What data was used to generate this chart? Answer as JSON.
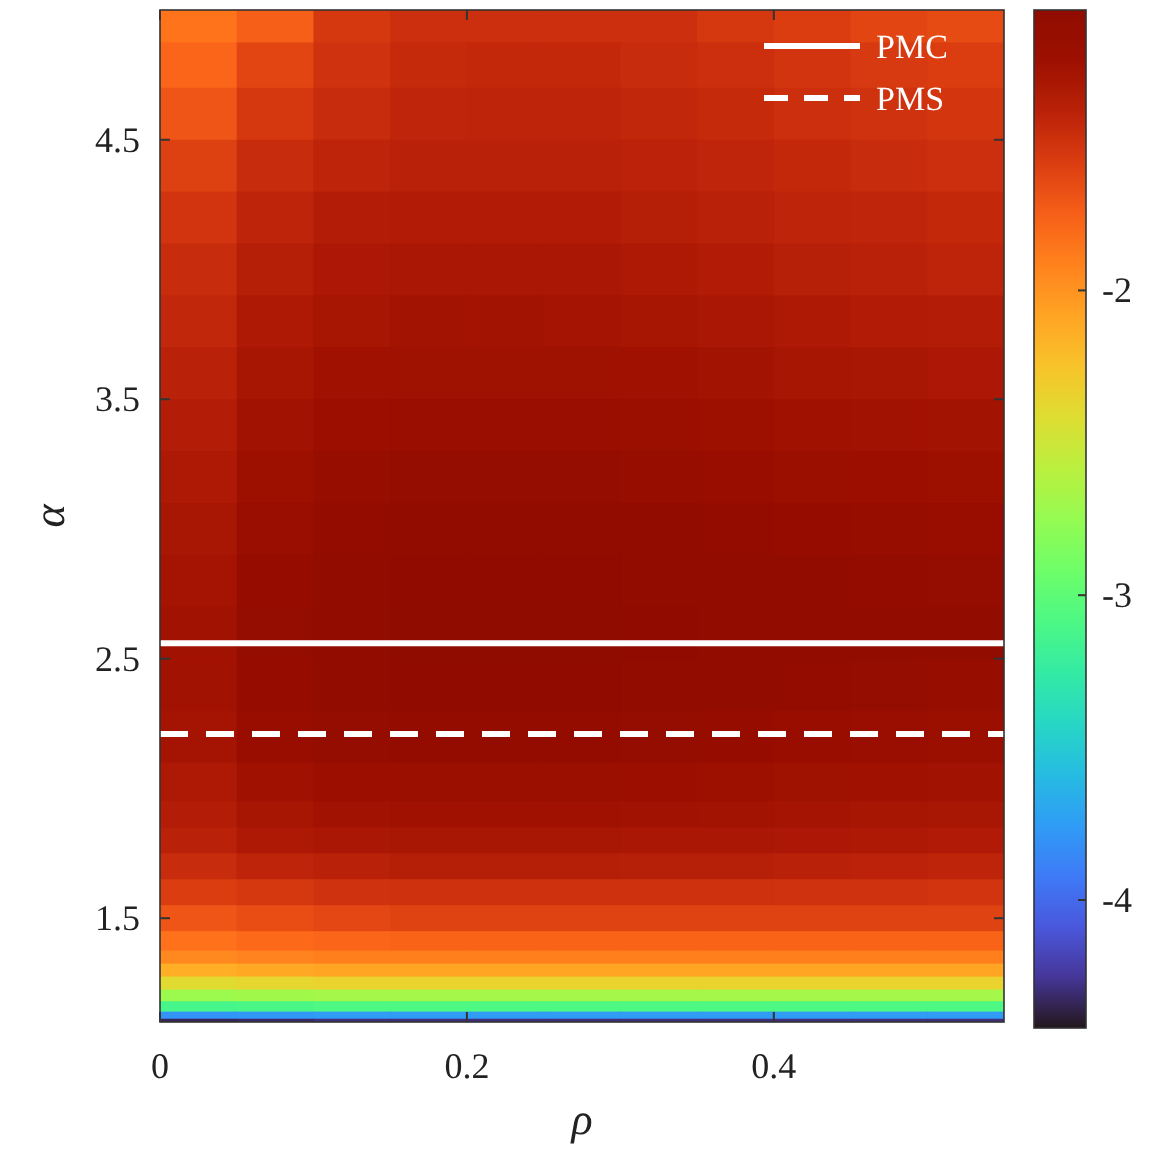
{
  "chart_data": {
    "type": "heatmap",
    "xlabel": "ρ",
    "ylabel": "α",
    "x": [
      0.025,
      0.075,
      0.125,
      0.175,
      0.225,
      0.275,
      0.325,
      0.375,
      0.425,
      0.475,
      0.525
    ],
    "y": [
      4.95,
      4.8,
      4.6,
      4.4,
      4.2,
      4.0,
      3.8,
      3.6,
      3.4,
      3.2,
      3.0,
      2.8,
      2.6,
      2.4,
      2.2,
      2.0,
      1.9,
      1.8,
      1.7,
      1.6,
      1.5,
      1.4,
      1.35,
      1.3,
      1.25,
      1.2,
      1.16,
      1.12,
      1.105
    ],
    "cells": [
      [
        -1.85,
        -1.75,
        -1.55,
        -1.5,
        -1.5,
        -1.5,
        -1.5,
        -1.55,
        -1.58,
        -1.62,
        -1.65
      ],
      [
        -1.78,
        -1.62,
        -1.52,
        -1.47,
        -1.46,
        -1.46,
        -1.48,
        -1.5,
        -1.53,
        -1.56,
        -1.58
      ],
      [
        -1.7,
        -1.55,
        -1.48,
        -1.44,
        -1.43,
        -1.43,
        -1.45,
        -1.47,
        -1.5,
        -1.52,
        -1.54
      ],
      [
        -1.6,
        -1.48,
        -1.43,
        -1.41,
        -1.41,
        -1.41,
        -1.42,
        -1.44,
        -1.46,
        -1.48,
        -1.5
      ],
      [
        -1.53,
        -1.43,
        -1.38,
        -1.37,
        -1.37,
        -1.37,
        -1.39,
        -1.41,
        -1.43,
        -1.44,
        -1.46
      ],
      [
        -1.48,
        -1.39,
        -1.34,
        -1.33,
        -1.33,
        -1.33,
        -1.35,
        -1.37,
        -1.4,
        -1.41,
        -1.43
      ],
      [
        -1.45,
        -1.35,
        -1.31,
        -1.29,
        -1.29,
        -1.3,
        -1.31,
        -1.33,
        -1.35,
        -1.37,
        -1.38
      ],
      [
        -1.41,
        -1.31,
        -1.27,
        -1.26,
        -1.26,
        -1.26,
        -1.27,
        -1.29,
        -1.31,
        -1.32,
        -1.34
      ],
      [
        -1.38,
        -1.28,
        -1.24,
        -1.22,
        -1.22,
        -1.22,
        -1.23,
        -1.25,
        -1.27,
        -1.28,
        -1.29
      ],
      [
        -1.35,
        -1.25,
        -1.2,
        -1.18,
        -1.18,
        -1.18,
        -1.2,
        -1.21,
        -1.23,
        -1.24,
        -1.25
      ],
      [
        -1.32,
        -1.22,
        -1.17,
        -1.15,
        -1.15,
        -1.15,
        -1.16,
        -1.17,
        -1.19,
        -1.2,
        -1.21
      ],
      [
        -1.3,
        -1.19,
        -1.15,
        -1.13,
        -1.13,
        -1.13,
        -1.14,
        -1.15,
        -1.16,
        -1.17,
        -1.18
      ],
      [
        -1.28,
        -1.18,
        -1.14,
        -1.12,
        -1.12,
        -1.12,
        -1.13,
        -1.14,
        -1.15,
        -1.15,
        -1.16
      ],
      [
        -1.28,
        -1.19,
        -1.15,
        -1.13,
        -1.13,
        -1.13,
        -1.14,
        -1.15,
        -1.17,
        -1.18,
        -1.2
      ],
      [
        -1.3,
        -1.21,
        -1.18,
        -1.17,
        -1.17,
        -1.17,
        -1.18,
        -1.19,
        -1.21,
        -1.22,
        -1.23
      ],
      [
        -1.35,
        -1.27,
        -1.24,
        -1.23,
        -1.23,
        -1.23,
        -1.24,
        -1.25,
        -1.26,
        -1.27,
        -1.28
      ],
      [
        -1.38,
        -1.31,
        -1.28,
        -1.27,
        -1.27,
        -1.27,
        -1.28,
        -1.29,
        -1.3,
        -1.31,
        -1.32
      ],
      [
        -1.41,
        -1.35,
        -1.33,
        -1.32,
        -1.32,
        -1.32,
        -1.33,
        -1.33,
        -1.34,
        -1.35,
        -1.36
      ],
      [
        -1.48,
        -1.43,
        -1.41,
        -1.39,
        -1.39,
        -1.39,
        -1.4,
        -1.4,
        -1.41,
        -1.42,
        -1.43
      ],
      [
        -1.58,
        -1.55,
        -1.52,
        -1.51,
        -1.51,
        -1.51,
        -1.51,
        -1.51,
        -1.52,
        -1.52,
        -1.53
      ],
      [
        -1.7,
        -1.66,
        -1.63,
        -1.61,
        -1.61,
        -1.61,
        -1.61,
        -1.61,
        -1.61,
        -1.61,
        -1.61
      ],
      [
        -1.84,
        -1.8,
        -1.78,
        -1.77,
        -1.77,
        -1.77,
        -1.77,
        -1.77,
        -1.77,
        -1.77,
        -1.77
      ],
      [
        -1.95,
        -1.92,
        -1.9,
        -1.9,
        -1.9,
        -1.9,
        -1.9,
        -1.9,
        -1.9,
        -1.9,
        -1.9
      ],
      [
        -2.13,
        -2.1,
        -2.08,
        -2.08,
        -2.08,
        -2.08,
        -2.08,
        -2.08,
        -2.08,
        -2.08,
        -2.08
      ],
      [
        -2.4,
        -2.37,
        -2.35,
        -2.35,
        -2.35,
        -2.35,
        -2.35,
        -2.35,
        -2.35,
        -2.35,
        -2.35
      ],
      [
        -2.72,
        -2.7,
        -2.68,
        -2.68,
        -2.68,
        -2.68,
        -2.68,
        -2.68,
        -2.68,
        -2.68,
        -2.68
      ],
      [
        -3.12,
        -3.1,
        -3.08,
        -3.08,
        -3.08,
        -3.08,
        -3.08,
        -3.08,
        -3.08,
        -3.08,
        -3.08
      ],
      [
        -3.8,
        -3.78,
        -3.76,
        -3.76,
        -3.76,
        -3.76,
        -3.76,
        -3.76,
        -3.76,
        -3.76,
        -3.76
      ],
      [
        -4.35,
        -4.33,
        -4.3,
        -4.3,
        -4.3,
        -4.3,
        -4.3,
        -4.3,
        -4.3,
        -4.3,
        -4.3
      ]
    ],
    "xlim": [
      0,
      0.55
    ],
    "xticks": [
      0,
      0.2,
      0.4
    ],
    "ylim": [
      1.1,
      5
    ],
    "yticks": [
      1.5,
      2.5,
      3.5,
      4.5
    ],
    "clim": [
      -4.42,
      -1.08
    ],
    "cticks": [
      -4,
      -3,
      -2
    ],
    "ref_lines": [
      {
        "axis": "y",
        "value": 2.56,
        "label": "PMC",
        "color": "#ffffff",
        "line_style": "solid"
      },
      {
        "axis": "y",
        "value": 2.21,
        "label": "PMS",
        "color": "#ffffff",
        "line_style": "dashed"
      }
    ],
    "legend": "top right"
  }
}
